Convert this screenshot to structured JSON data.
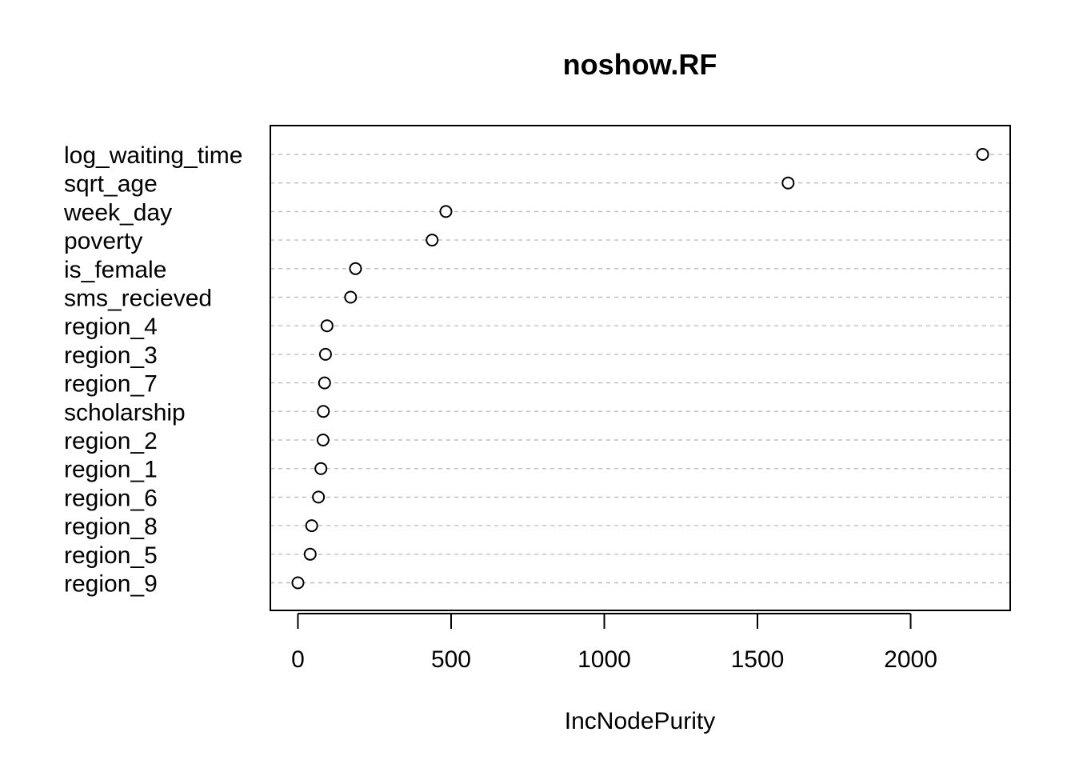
{
  "chart_data": {
    "type": "scatter",
    "title": "noshow.RF",
    "xlabel": "IncNodePurity",
    "ylabel": "",
    "xlim": [
      -90,
      2325
    ],
    "xticks": [
      0,
      500,
      1000,
      1500,
      2000
    ],
    "xtick_labels": [
      "0",
      "500",
      "1000",
      "1500",
      "2000"
    ],
    "grid": "horizontal dashed",
    "categories": [
      "log_waiting_time",
      "sqrt_age",
      "week_day",
      "poverty",
      "is_female",
      "sms_recieved",
      "region_4",
      "region_3",
      "region_7",
      "scholarship",
      "region_2",
      "region_1",
      "region_6",
      "region_8",
      "region_5",
      "region_9"
    ],
    "values": [
      2235,
      1600,
      483,
      438,
      188,
      172,
      95,
      90,
      87,
      83,
      82,
      75,
      67,
      45,
      40,
      0
    ]
  }
}
